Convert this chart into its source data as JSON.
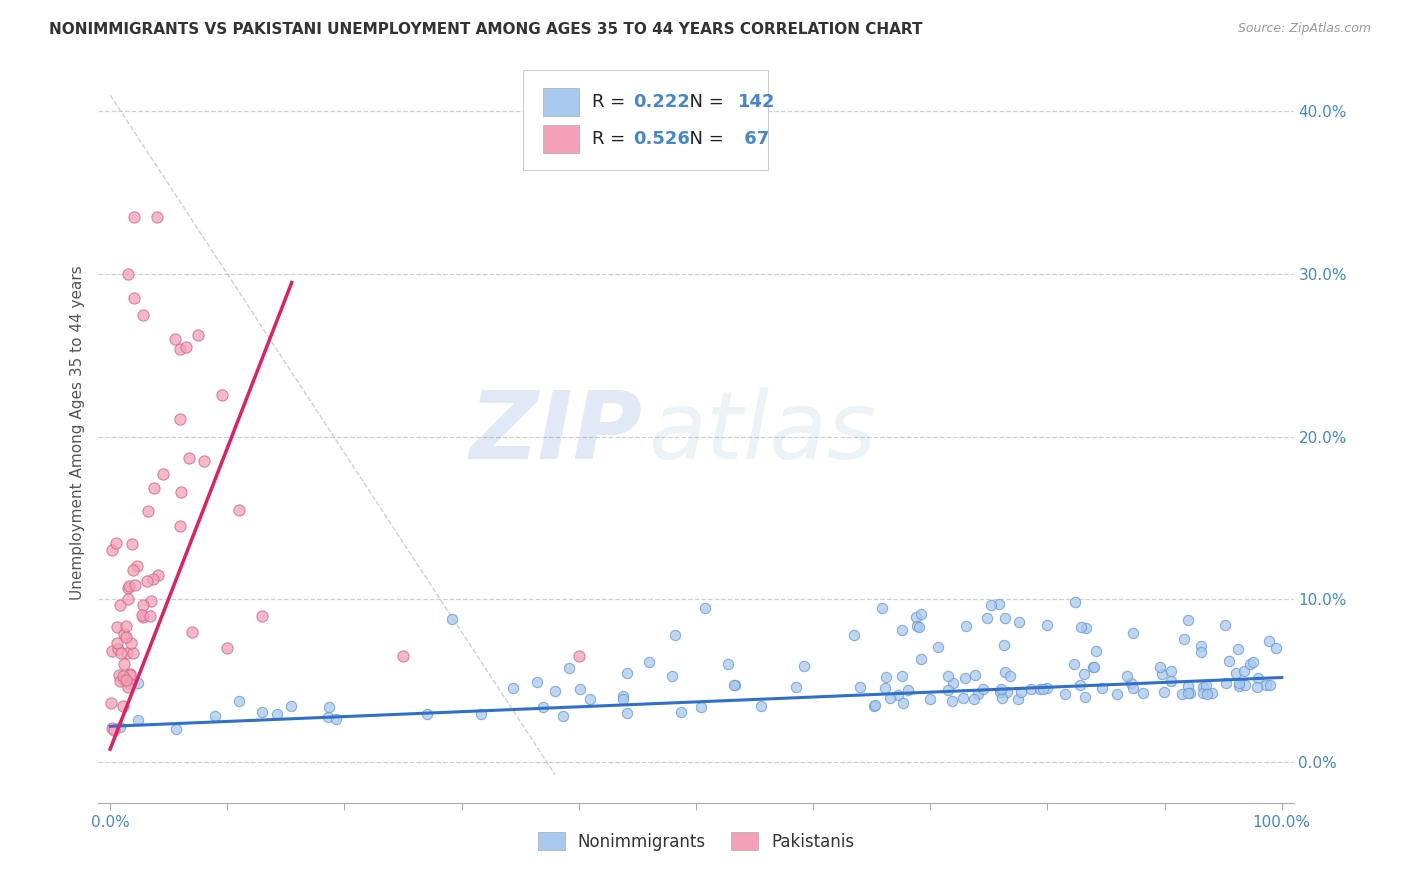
{
  "title": "NONIMMIGRANTS VS PAKISTANI UNEMPLOYMENT AMONG AGES 35 TO 44 YEARS CORRELATION CHART",
  "source": "Source: ZipAtlas.com",
  "ylabel": "Unemployment Among Ages 35 to 44 years",
  "xlim": [
    -0.01,
    1.01
  ],
  "ylim": [
    -0.025,
    0.43
  ],
  "xticks": [
    0.0,
    0.1,
    0.2,
    0.3,
    0.4,
    0.5,
    0.6,
    0.7,
    0.8,
    0.9,
    1.0
  ],
  "yticks": [
    0.0,
    0.1,
    0.2,
    0.3,
    0.4
  ],
  "yticklabels": [
    "0.0%",
    "10.0%",
    "20.0%",
    "30.0%",
    "40.0%"
  ],
  "blue_color": "#A8C8F0",
  "pink_color": "#F4A0B8",
  "blue_line_color": "#3070C8",
  "pink_line_color": "#E02060",
  "blue_R": 0.222,
  "blue_N": 142,
  "pink_R": 0.526,
  "pink_N": 67,
  "legend_label_blue": "Nonimmigrants",
  "legend_label_pink": "Pakistanis",
  "watermark_zip": "ZIP",
  "watermark_atlas": "atlas",
  "background_color": "#FFFFFF",
  "grid_color": "#D0D0D0",
  "title_fontsize": 11,
  "axis_tick_color": "#4488CC",
  "seed_blue": 42,
  "seed_pink": 7
}
